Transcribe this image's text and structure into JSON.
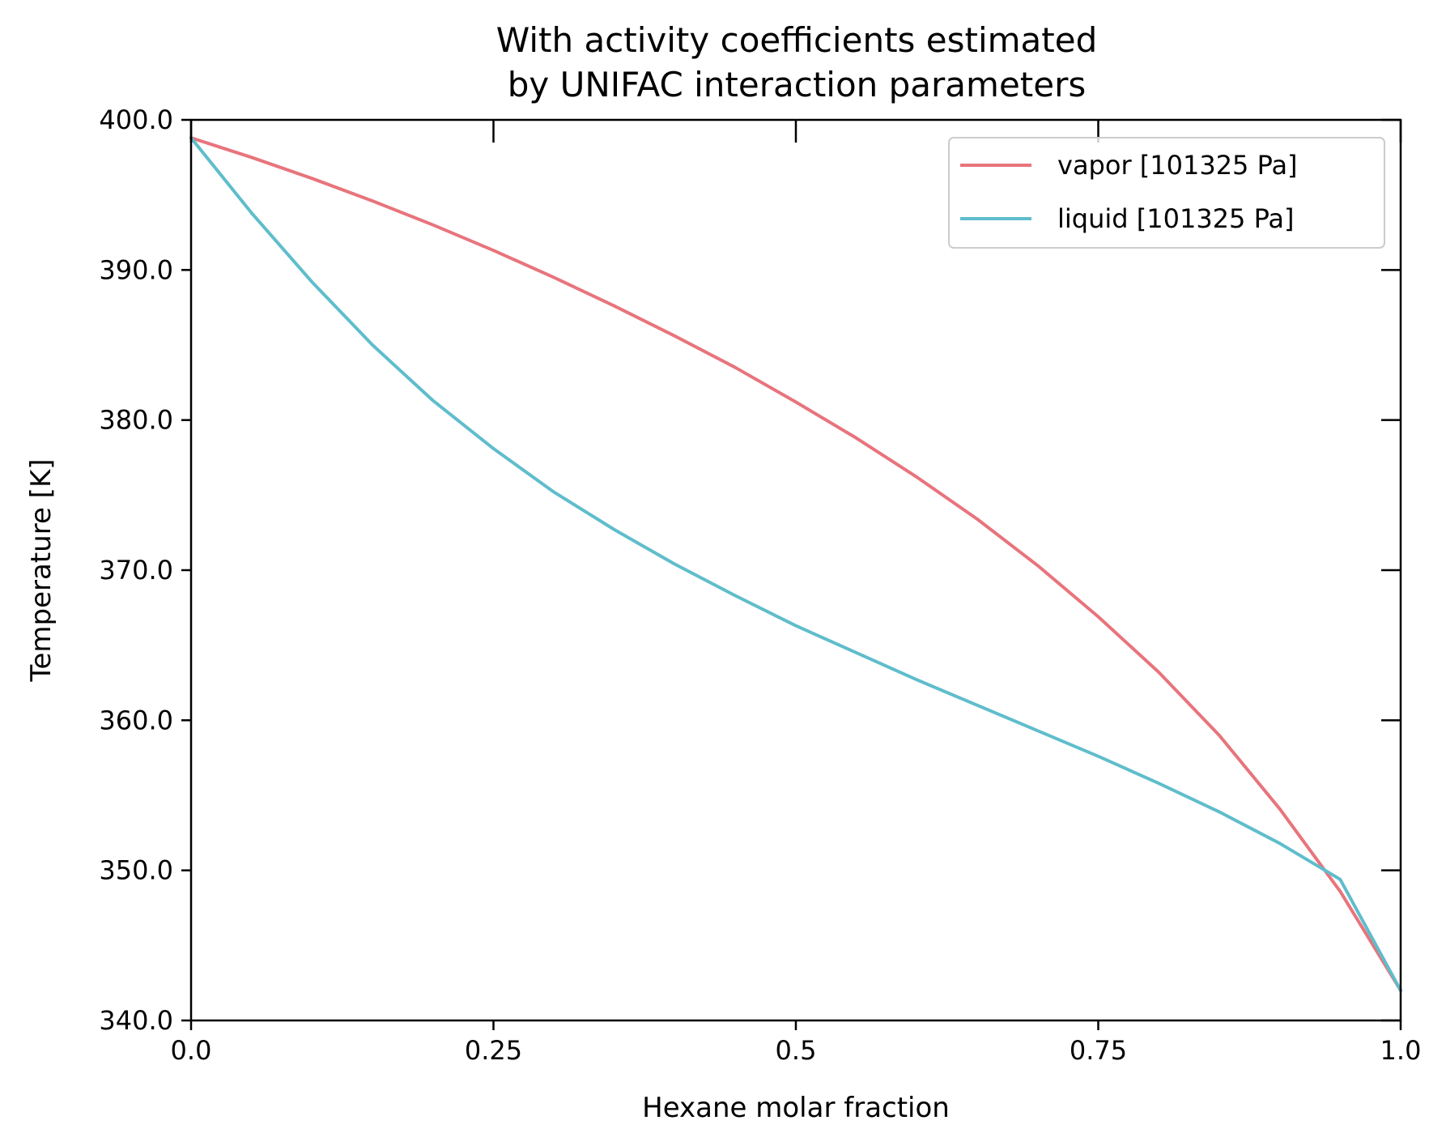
{
  "chart_data": {
    "type": "line",
    "title": [
      "With activity coefficients estimated",
      "by UNIFAC interaction parameters"
    ],
    "xlabel": "Hexane molar fraction",
    "ylabel": "Temperature [K]",
    "xlim": [
      0.0,
      1.0
    ],
    "ylim": [
      340.0,
      400.0
    ],
    "xticks": [
      0.0,
      0.25,
      0.5,
      0.75,
      1.0
    ],
    "xtick_labels": [
      "0.0",
      "0.25",
      "0.5",
      "0.75",
      "1.0"
    ],
    "yticks": [
      340,
      350,
      360,
      370,
      380,
      390,
      400
    ],
    "ytick_labels": [
      "340.0",
      "350.0",
      "360.0",
      "370.0",
      "380.0",
      "390.0",
      "400.0"
    ],
    "grid": false,
    "legend": {
      "position": "upper right"
    },
    "series": [
      {
        "name": "vapor [101325 Pa]",
        "color": "#e8747c",
        "x": [
          0.0,
          0.05,
          0.1,
          0.15,
          0.2,
          0.25,
          0.3,
          0.35,
          0.4,
          0.45,
          0.5,
          0.55,
          0.6,
          0.65,
          0.7,
          0.75,
          0.8,
          0.85,
          0.9,
          0.95,
          1.0
        ],
        "y": [
          398.8,
          397.5,
          396.1,
          394.6,
          393.0,
          391.3,
          389.5,
          387.6,
          385.6,
          383.5,
          381.2,
          378.8,
          376.2,
          373.4,
          370.3,
          366.9,
          363.2,
          359.0,
          354.1,
          348.6,
          342.0
        ]
      },
      {
        "name": "liquid [101325 Pa]",
        "color": "#5fbdcc",
        "x": [
          0.0,
          0.05,
          0.1,
          0.15,
          0.2,
          0.25,
          0.3,
          0.35,
          0.4,
          0.45,
          0.5,
          0.55,
          0.6,
          0.65,
          0.7,
          0.75,
          0.8,
          0.85,
          0.9,
          0.95,
          1.0
        ],
        "y": [
          398.8,
          393.8,
          389.2,
          385.0,
          381.3,
          378.1,
          375.2,
          372.7,
          370.4,
          368.3,
          366.3,
          364.5,
          362.7,
          361.0,
          359.3,
          357.6,
          355.8,
          353.9,
          351.8,
          349.4,
          342.0
        ]
      }
    ]
  }
}
